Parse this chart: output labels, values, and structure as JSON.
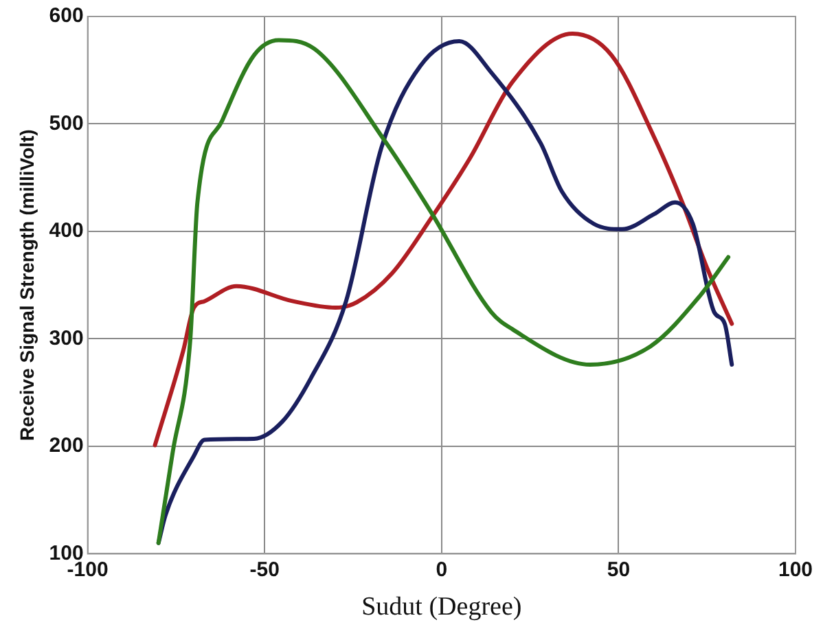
{
  "chart_data": {
    "type": "line",
    "xlabel": "Sudut (Degree)",
    "ylabel": "Receive Signal Strength (milliVolt)",
    "xlim": [
      -100,
      100
    ],
    "xticks": [
      -100,
      -50,
      0,
      50,
      100
    ],
    "ylim": [
      100,
      600
    ],
    "yticks": [
      100,
      200,
      300,
      400,
      500,
      600
    ],
    "grid": true,
    "legend": false,
    "marker": "none",
    "line_style": "solid",
    "series": [
      {
        "color": "#2e7d1e",
        "x": [
          -80,
          -76,
          -71,
          -69,
          -62,
          -53,
          -46,
          -36,
          -16,
          -3,
          14,
          20,
          42,
          59,
          73,
          81
        ],
        "values": [
          110,
          194,
          300,
          427,
          503,
          564,
          578,
          570,
          484,
          418,
          325,
          309,
          276,
          293,
          340,
          376
        ]
      },
      {
        "color": "#1a1f5e",
        "x": [
          -80,
          -78,
          -70,
          -67,
          -53,
          -45,
          -37,
          -27,
          -17,
          -6,
          5,
          14,
          28,
          34,
          43,
          51,
          60,
          66,
          71,
          77,
          80,
          82
        ],
        "values": [
          110,
          136,
          191,
          206,
          207,
          223,
          263,
          335,
          478,
          554,
          577,
          548,
          482,
          437,
          407,
          402,
          416,
          427,
          407,
          325,
          314,
          276
        ]
      },
      {
        "color": "#b01e23",
        "x": [
          -81,
          -73,
          -70,
          -67,
          -58,
          -42,
          -30,
          -24,
          -14,
          -3,
          8,
          20,
          37,
          48,
          60,
          68,
          75,
          82
        ],
        "values": [
          201,
          289,
          329,
          335,
          349,
          335,
          329,
          334,
          361,
          412,
          468,
          539,
          584,
          564,
          488,
          427,
          366,
          314
        ]
      }
    ]
  }
}
